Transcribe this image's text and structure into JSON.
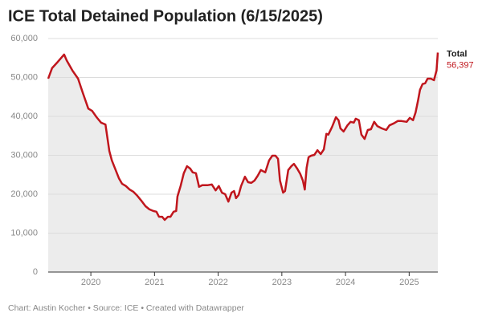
{
  "chart_data": {
    "type": "area",
    "title": "ICE Total Detained Population (6/15/2025)",
    "source": "Chart: Austin Kocher • Source: ICE • Created with Datawrapper",
    "xlim": [
      2019.33,
      2025.45
    ],
    "xticks": [
      2020,
      2021,
      2022,
      2023,
      2024,
      2025
    ],
    "ylim": [
      0,
      60000
    ],
    "yticks": [
      0,
      {
        "value": 10000,
        "label": "10,000"
      },
      {
        "value": 20000,
        "label": "20,000"
      },
      {
        "value": 30000,
        "label": "30,000"
      },
      {
        "value": 40000,
        "label": "40,000"
      },
      {
        "value": 50000,
        "label": "50,000"
      },
      {
        "value": 60000,
        "label": "60,000"
      }
    ],
    "grid": true,
    "x": [
      2019.33,
      2019.39,
      2019.48,
      2019.58,
      2019.62,
      2019.71,
      2019.8,
      2019.87,
      2019.96,
      2020.02,
      2020.09,
      2020.16,
      2020.23,
      2020.29,
      2020.33,
      2020.39,
      2020.44,
      2020.49,
      2020.55,
      2020.61,
      2020.67,
      2020.73,
      2020.79,
      2020.86,
      2020.92,
      2020.98,
      2021.03,
      2021.07,
      2021.12,
      2021.16,
      2021.21,
      2021.25,
      2021.3,
      2021.34,
      2021.36,
      2021.41,
      2021.46,
      2021.51,
      2021.56,
      2021.6,
      2021.65,
      2021.7,
      2021.75,
      2021.83,
      2021.9,
      2021.96,
      2022.01,
      2022.06,
      2022.11,
      2022.16,
      2022.21,
      2022.25,
      2022.28,
      2022.32,
      2022.36,
      2022.42,
      2022.47,
      2022.52,
      2022.57,
      2022.62,
      2022.67,
      2022.74,
      2022.8,
      2022.85,
      2022.9,
      2022.94,
      2022.97,
      2023.02,
      2023.05,
      2023.1,
      2023.15,
      2023.19,
      2023.24,
      2023.29,
      2023.33,
      2023.36,
      2023.39,
      2023.42,
      2023.46,
      2023.51,
      2023.56,
      2023.61,
      2023.66,
      2023.7,
      2023.73,
      2023.79,
      2023.85,
      2023.89,
      2023.92,
      2023.97,
      2024.03,
      2024.08,
      2024.13,
      2024.16,
      2024.21,
      2024.25,
      2024.3,
      2024.35,
      2024.4,
      2024.45,
      2024.5,
      2024.57,
      2024.64,
      2024.69,
      2024.76,
      2024.82,
      2024.88,
      2024.96,
      2025.01,
      2025.06,
      2025.1,
      2025.14,
      2025.17,
      2025.21,
      2025.25,
      2025.29,
      2025.34,
      2025.39,
      2025.43,
      2025.45
    ],
    "series": [
      {
        "name": "Total",
        "color": "#c0161d",
        "area_color": "#ececec",
        "values": [
          49700,
          52400,
          54000,
          55900,
          54400,
          51800,
          49700,
          46200,
          42000,
          41400,
          39800,
          38400,
          37900,
          31100,
          28700,
          26200,
          24100,
          22700,
          22100,
          21200,
          20600,
          19600,
          18400,
          16900,
          16100,
          15700,
          15500,
          14200,
          14200,
          13400,
          14200,
          14200,
          15500,
          15700,
          19400,
          22100,
          25400,
          27200,
          26600,
          25600,
          25400,
          21900,
          22300,
          22300,
          22500,
          21000,
          22100,
          20400,
          20000,
          18100,
          20400,
          20800,
          19000,
          19800,
          22100,
          24500,
          23100,
          22900,
          23500,
          24700,
          26200,
          25600,
          28700,
          29900,
          29900,
          29100,
          23500,
          20400,
          20800,
          26200,
          27200,
          27800,
          26600,
          25200,
          23500,
          21200,
          26800,
          29500,
          29900,
          30100,
          31300,
          30300,
          31500,
          35500,
          35300,
          37300,
          39800,
          39000,
          36900,
          36100,
          37700,
          38600,
          38400,
          39400,
          39000,
          35300,
          34200,
          36500,
          36700,
          38600,
          37500,
          36900,
          36500,
          37700,
          38200,
          38800,
          38800,
          38600,
          39600,
          39000,
          41000,
          44100,
          46800,
          48300,
          48500,
          49700,
          49700,
          49300,
          51800,
          56397
        ],
        "value_labels": [
          null,
          null,
          null,
          null,
          null,
          null,
          null,
          null,
          null,
          null,
          null,
          null,
          null,
          null,
          null,
          null,
          null,
          null,
          null,
          null,
          null,
          null,
          null,
          null,
          null,
          null,
          null,
          null,
          null,
          null,
          null,
          null,
          null,
          null,
          null,
          null,
          null,
          null,
          null,
          null,
          null,
          null,
          null,
          null,
          null,
          null,
          null,
          null,
          null,
          null,
          null,
          null,
          null,
          null,
          null,
          null,
          null,
          null,
          null,
          null,
          null,
          null,
          null,
          null,
          null,
          null,
          null,
          null,
          null,
          null,
          null,
          null,
          null,
          null,
          null,
          null,
          null,
          null,
          null,
          null,
          null,
          null,
          null,
          null,
          null,
          null,
          null,
          null,
          null,
          null,
          null,
          null,
          null,
          null,
          null,
          null,
          null,
          null,
          null,
          null,
          null,
          null,
          null,
          null,
          null,
          null,
          null,
          null,
          null,
          null,
          null,
          null,
          null,
          null,
          null,
          null,
          null,
          null,
          null,
          "56,397"
        ]
      }
    ]
  }
}
